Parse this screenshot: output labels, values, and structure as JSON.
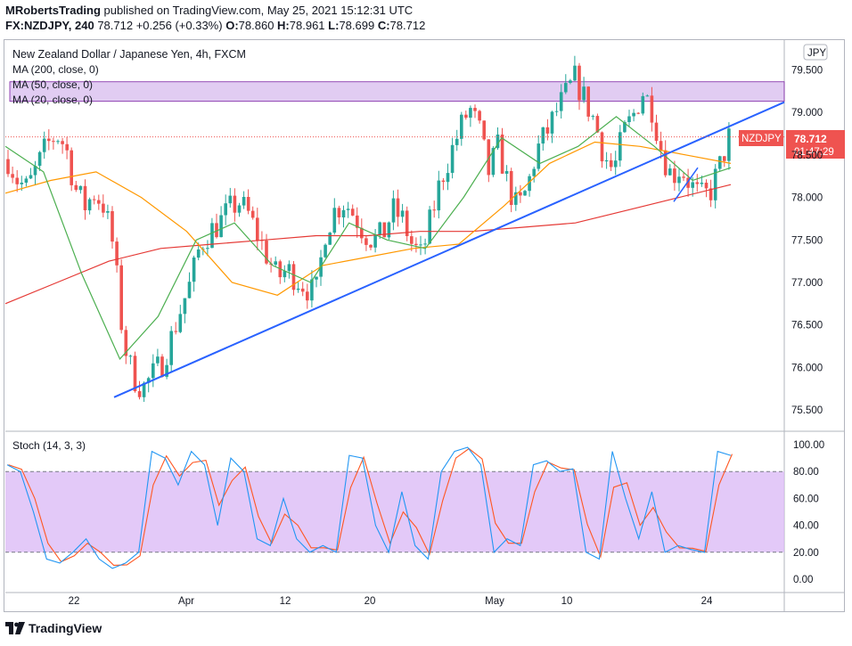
{
  "header": {
    "author": "MRobertsTrading",
    "published_text": "published on TradingView.com, May 25, 2021 15:12:31 UTC",
    "symbol": "FX:NZDJPY, 240",
    "last": "78.712",
    "change": "+0.256 (+0.33%)",
    "o_label": "O:",
    "o_value": "78.860",
    "h_label": "H:",
    "h_value": "78.961",
    "l_label": "L:",
    "l_value": "78.699",
    "c_label": "C:",
    "c_value": "78.712"
  },
  "legend": {
    "title": "New Zealand Dollar / Japanese Yen, 4h, FXCM",
    "ma200": "MA (200, close, 0)",
    "ma50": "MA (50, close, 0)",
    "ma20": "MA (20, close, 0)"
  },
  "currency_badge": "JPY",
  "price_label": {
    "symbol": "NZDJPY",
    "price": "78.712",
    "countdown": "01:47:29"
  },
  "stoch_label": "Stoch (14, 3, 3)",
  "footer": {
    "brand": "TradingView"
  },
  "colors": {
    "up": "#26a69a",
    "down": "#ef5350",
    "ma200": "#e53935",
    "ma50": "#ff9800",
    "ma20": "#4caf50",
    "trendline": "#2962ff",
    "zone": "#c8a2e8",
    "stoch_k": "#2196f3",
    "stoch_d": "#ff5722",
    "stoch_band": "#d9b7f5"
  },
  "chart_data": [
    {
      "type": "candlestick",
      "title": "New Zealand Dollar / Japanese Yen, 4h, FXCM",
      "x_ticks": [
        "22",
        "Apr",
        "12",
        "20",
        "May",
        "10",
        "24"
      ],
      "y_ticks": [
        "79.500",
        "79.000",
        "78.500",
        "78.000",
        "77.500",
        "77.000",
        "76.500",
        "76.000",
        "75.500"
      ],
      "ylim": [
        75.25,
        79.85
      ],
      "last_price": 78.712,
      "resistance_zone": [
        79.13,
        79.36
      ],
      "trendlines": [
        {
          "from": [
            "22 Mar",
            75.65
          ],
          "to": [
            "May 26",
            79.12
          ]
        },
        {
          "from": [
            "May 19",
            77.95
          ],
          "to": [
            "May 21",
            78.35
          ]
        }
      ],
      "price_path": [
        78.45,
        78.2,
        78.1,
        78.35,
        78.6,
        78.75,
        78.6,
        78.1,
        77.9,
        78.05,
        77.9,
        77.4,
        76.3,
        75.9,
        75.75,
        75.9,
        76.05,
        76.35,
        76.7,
        77.0,
        77.45,
        77.6,
        77.7,
        77.85,
        77.95,
        77.8,
        77.55,
        77.3,
        77.05,
        77.15,
        77.05,
        76.95,
        76.85,
        77.6,
        77.85,
        77.95,
        77.8,
        77.6,
        77.5,
        77.55,
        77.85,
        77.75,
        77.45,
        77.3,
        77.75,
        78.2,
        78.5,
        78.8,
        79.05,
        78.8,
        78.3,
        78.6,
        78.15,
        77.85,
        78.1,
        78.55,
        78.75,
        79.0,
        79.2,
        79.4,
        79.15,
        78.9,
        78.5,
        78.3,
        78.75,
        78.95,
        79.25,
        79.05,
        78.55,
        78.25,
        78.35,
        78.15,
        78.0,
        78.05,
        78.35,
        78.7
      ]
    },
    {
      "type": "line",
      "name": "MA (200, close, 0)",
      "values": [
        76.75,
        77.0,
        77.25,
        77.4,
        77.45,
        77.5,
        77.55,
        77.55,
        77.6,
        77.6,
        77.65,
        77.7,
        77.85,
        78.0,
        78.15
      ]
    },
    {
      "type": "line",
      "name": "MA (50, close, 0)",
      "values": [
        78.05,
        78.2,
        78.3,
        78.0,
        77.6,
        77.0,
        76.85,
        77.2,
        77.3,
        77.4,
        77.45,
        77.9,
        78.4,
        78.65,
        78.6,
        78.5,
        78.4
      ]
    },
    {
      "type": "line",
      "name": "MA (20, close, 0)",
      "values": [
        78.6,
        78.3,
        77.1,
        76.1,
        76.6,
        77.5,
        77.7,
        77.2,
        77.0,
        77.7,
        77.5,
        77.4,
        78.0,
        78.7,
        78.4,
        78.6,
        78.95,
        78.6,
        78.2,
        78.35
      ]
    },
    {
      "type": "line",
      "name": "Stoch (14, 3, 3)",
      "y_ticks": [
        "100.00",
        "80.00",
        "60.00",
        "40.00",
        "20.00",
        "0.00"
      ],
      "ylim": [
        0,
        100
      ],
      "band": [
        20,
        80
      ],
      "values": [
        85,
        80,
        50,
        15,
        12,
        20,
        30,
        15,
        8,
        12,
        20,
        95,
        90,
        70,
        95,
        85,
        40,
        90,
        80,
        30,
        25,
        60,
        30,
        20,
        25,
        20,
        92,
        90,
        40,
        20,
        65,
        25,
        15,
        80,
        95,
        98,
        85,
        20,
        30,
        25,
        85,
        88,
        80,
        82,
        20,
        15,
        95,
        60,
        30,
        65,
        20,
        25,
        22,
        20,
        95,
        92
      ]
    }
  ]
}
